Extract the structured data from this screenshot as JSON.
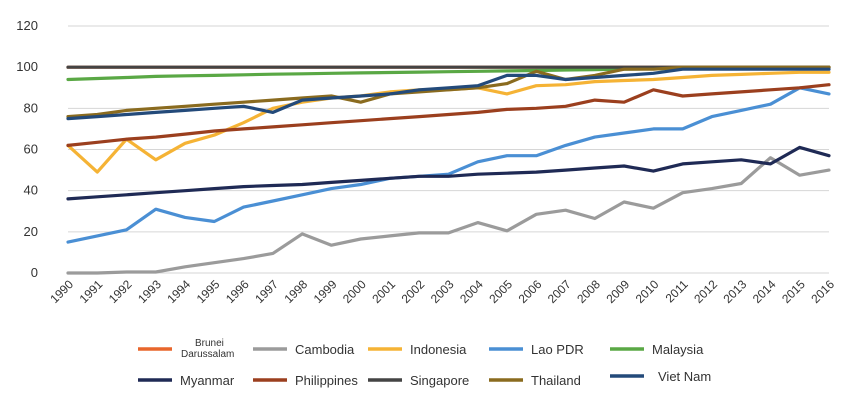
{
  "chart_data": {
    "type": "line",
    "title": "",
    "xlabel": "",
    "ylabel": "",
    "ylim": [
      0,
      120
    ],
    "yticks": [
      "0",
      "20",
      "40",
      "60",
      "80",
      "100",
      "120"
    ],
    "grid": true,
    "legend_position": "bottom",
    "x": [
      "1990",
      "1991",
      "1992",
      "1993",
      "1994",
      "1995",
      "1996",
      "1997",
      "1998",
      "1999",
      "2000",
      "2001",
      "2002",
      "2003",
      "2004",
      "2005",
      "2006",
      "2007",
      "2008",
      "2009",
      "2010",
      "2011",
      "2012",
      "2013",
      "2014",
      "2015",
      "2016"
    ],
    "series": [
      {
        "name": "Brunei Darussalam",
        "color": "#e8662c",
        "values": [
          100,
          100,
          100,
          100,
          100,
          100,
          100,
          100,
          100,
          100,
          100,
          100,
          100,
          100,
          100,
          100,
          100,
          100,
          100,
          100,
          100,
          100,
          100,
          100,
          100,
          100,
          100
        ]
      },
      {
        "name": "Cambodia",
        "color": "#9b9b9b",
        "values": [
          0,
          0,
          0.5,
          0.5,
          3,
          5,
          7,
          9.5,
          19,
          13.5,
          16.5,
          18,
          19.5,
          19.5,
          24.5,
          20.5,
          28.5,
          30.5,
          26.5,
          34.5,
          31.5,
          39,
          41,
          43.5,
          56,
          47.5,
          50
        ]
      },
      {
        "name": "Indonesia",
        "color": "#f5b335",
        "values": [
          62,
          49,
          65,
          55,
          63,
          67,
          73,
          80,
          83,
          85,
          86,
          88,
          89,
          89,
          90,
          87,
          91,
          91.5,
          93,
          93.5,
          94,
          95,
          96,
          96.5,
          97,
          97.5,
          97.5
        ]
      },
      {
        "name": "Lao PDR",
        "color": "#4a8fd4",
        "values": [
          15,
          18,
          21,
          31,
          27,
          25,
          32,
          35,
          38,
          41,
          43,
          46,
          47,
          48,
          54,
          57,
          57,
          62,
          66,
          68,
          70,
          70,
          76,
          79,
          82,
          90,
          87
        ]
      },
      {
        "name": "Malaysia",
        "color": "#5aa845",
        "values": [
          94,
          94.5,
          95,
          95.5,
          95.8,
          96,
          96.3,
          96.6,
          96.8,
          97,
          97.2,
          97.4,
          97.6,
          97.8,
          98,
          98.2,
          98.4,
          98.6,
          98.8,
          99,
          99.2,
          99.4,
          99.6,
          99.8,
          100,
          100,
          100
        ]
      },
      {
        "name": "Myanmar",
        "color": "#1f2a55",
        "values": [
          36,
          37,
          38,
          39,
          40,
          41,
          42,
          42.5,
          43,
          44,
          45,
          46,
          47,
          47,
          48,
          48.5,
          49,
          50,
          51,
          52,
          49.5,
          53,
          54,
          55,
          53,
          61,
          57
        ]
      },
      {
        "name": "Philippines",
        "color": "#9b3f1e",
        "values": [
          62,
          63.5,
          65,
          66,
          67.5,
          69,
          70,
          71,
          72,
          73,
          74,
          75,
          76,
          77,
          78,
          79.5,
          80,
          81,
          84,
          83,
          89,
          86,
          87,
          88,
          89,
          90,
          91.5
        ]
      },
      {
        "name": "Singapore",
        "color": "#444444",
        "values": [
          100,
          100,
          100,
          100,
          100,
          100,
          100,
          100,
          100,
          100,
          100,
          100,
          100,
          100,
          100,
          100,
          100,
          100,
          100,
          100,
          100,
          100,
          100,
          100,
          100,
          100,
          100
        ]
      },
      {
        "name": "Thailand",
        "color": "#8a6b1f",
        "values": [
          76,
          77,
          79,
          80,
          81,
          82,
          83,
          84,
          85,
          86,
          83,
          87,
          88,
          89,
          90,
          92,
          98,
          94,
          96,
          99,
          99,
          100,
          100,
          100,
          100,
          100,
          100
        ]
      },
      {
        "name": "Viet Nam",
        "color": "#234a7a",
        "values": [
          75,
          76,
          77,
          78,
          79,
          80,
          81,
          78,
          84,
          85,
          86,
          87,
          89,
          90,
          91,
          96,
          96,
          94,
          95,
          96,
          97,
          99,
          99,
          99,
          99,
          99,
          99
        ]
      }
    ]
  }
}
